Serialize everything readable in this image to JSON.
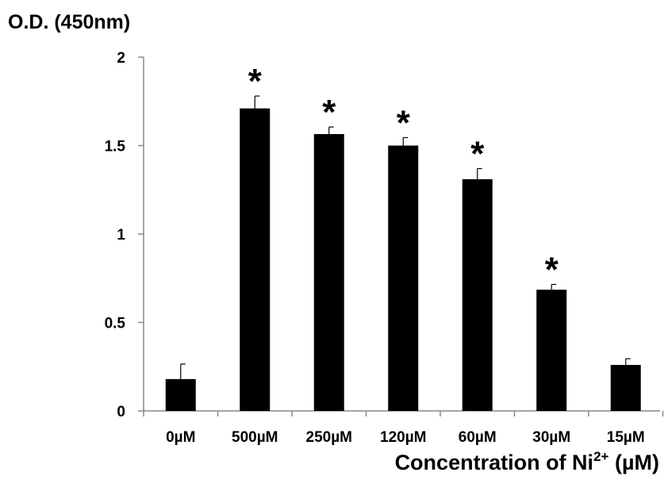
{
  "chart_data": {
    "type": "bar",
    "ylabel": "O.D. (450nm)",
    "xlabel": {
      "prefix": "Concentration of Ni",
      "sup": "2+",
      "suffix": " (µM)"
    },
    "categories": [
      "0µM",
      "500µM",
      "250µM",
      "120µM",
      "60µM",
      "30µM",
      "15µM"
    ],
    "values": [
      0.18,
      1.71,
      1.565,
      1.5,
      1.31,
      0.685,
      0.26
    ],
    "errors": [
      0.085,
      0.07,
      0.04,
      0.045,
      0.06,
      0.03,
      0.035
    ],
    "significant": [
      false,
      true,
      true,
      true,
      true,
      true,
      false
    ],
    "significance_marker": "*",
    "ylim": [
      0,
      2
    ],
    "yticks": [
      0,
      0.5,
      1,
      1.5,
      2
    ],
    "ytick_labels": [
      "0",
      "0.5",
      "1",
      "1.5",
      "2"
    ],
    "bar_color": "#000000",
    "grid": false,
    "legend": "none"
  }
}
